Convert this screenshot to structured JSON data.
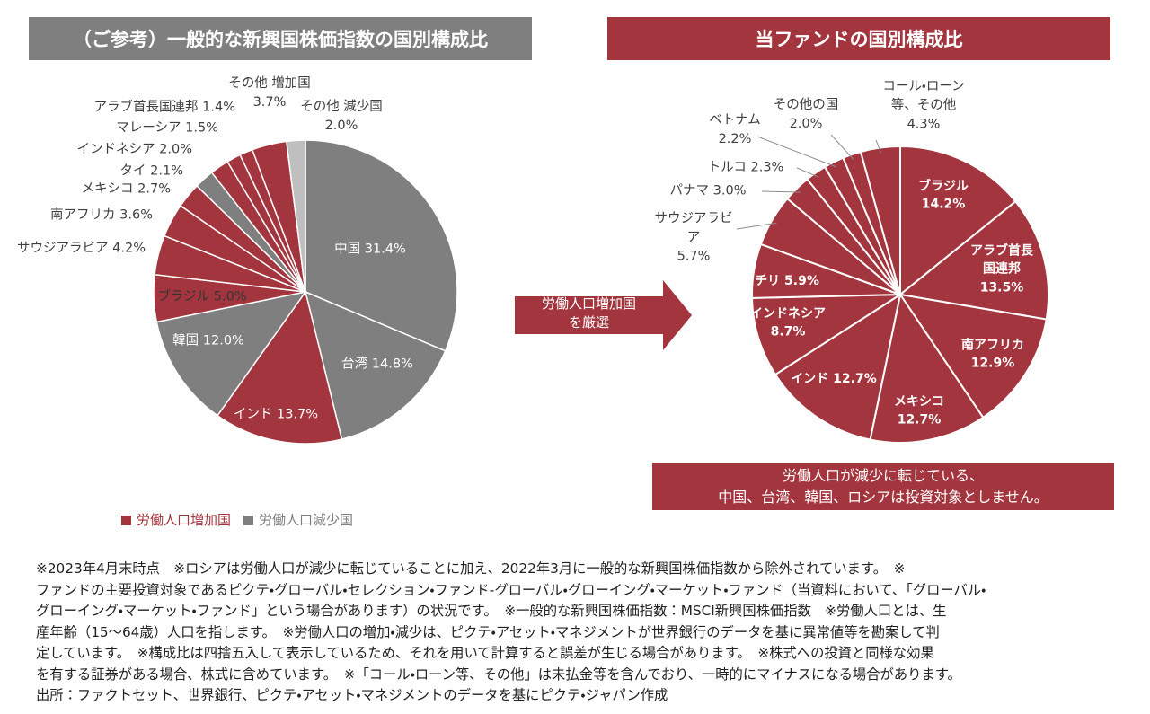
{
  "chart_data": [
    {
      "type": "pie",
      "title": "（ご参考）一般的な新興国株価指数の国別構成比",
      "categories": [
        "中国",
        "台湾",
        "インド",
        "韓国",
        "ブラジル",
        "サウジアラビア",
        "南アフリカ",
        "メキシコ",
        "タイ",
        "インドネシア",
        "マレーシア",
        "アラブ首長国連邦",
        "その他 増加国",
        "その他 減少国"
      ],
      "values": [
        31.4,
        14.8,
        13.7,
        12.0,
        5.0,
        4.2,
        3.6,
        2.7,
        2.1,
        2.0,
        1.5,
        1.4,
        3.7,
        2.0
      ],
      "value_labels": [
        "31.4%",
        "14.8%",
        "13.7%",
        "12.0%",
        "5.0%",
        "4.2%",
        "3.6%",
        "2.7%",
        "2.1%",
        "2.0%",
        "1.5%",
        "1.4%",
        "3.7%",
        "2.0%"
      ],
      "colors": [
        "#7f7f7f",
        "#7f7f7f",
        "#a3353e",
        "#7f7f7f",
        "#a3353e",
        "#a3353e",
        "#a3353e",
        "#a3353e",
        "#7f7f7f",
        "#a3353e",
        "#a3353e",
        "#a3353e",
        "#a3353e",
        "#bfbfbf"
      ],
      "legend": [
        {
          "name": "労働人口増加国",
          "color": "#a3353e"
        },
        {
          "name": "労働人口減少国",
          "color": "#7f7f7f"
        }
      ]
    },
    {
      "type": "pie",
      "title": "当ファンドの国別構成比",
      "categories": [
        "ブラジル",
        "アラブ首長国連邦",
        "南アフリカ",
        "メキシコ",
        "インド",
        "インドネシア",
        "チリ",
        "サウジアラビア",
        "パナマ",
        "トルコ",
        "ベトナム",
        "その他の国",
        "コール・ローン等、その他"
      ],
      "values": [
        14.2,
        13.5,
        12.9,
        12.7,
        12.7,
        8.7,
        5.9,
        5.7,
        3.0,
        2.3,
        2.2,
        2.0,
        4.3
      ],
      "value_labels": [
        "14.2%",
        "13.5%",
        "12.9%",
        "12.7%",
        "12.7%",
        "8.7%",
        "5.9%",
        "5.7%",
        "3.0%",
        "2.3%",
        "2.2%",
        "2.0%",
        "4.3%"
      ],
      "color": "#a3353e"
    }
  ],
  "arrow_text": [
    "労働人口増加国",
    "を厳選"
  ],
  "note_box": [
    "労働人口が減少に転じている、",
    "中国、台湾、韓国、ロシアは投資対象としません。"
  ],
  "footnotes": [
    "※2023年4月末時点　※ロシアは労働人口が減少に転じていることに加え、2022年3月に一般的な新興国株価指数から除外されています。　※",
    "ファンドの主要投資対象であるピクテ・グローバル・セレクション・ファンド-グローバル・グローイング・マーケット・ファンド（当資料において、「グローバル・",
    "グローイング・マーケット・ファンド」という場合があります）の状況です。　※一般的な新興国株価指数：MSCI新興国株価指数　※労働人口とは、生",
    "産年齢（15～64歳）人口を指します。　※労働人口の増加・減少は、ピクテ・アセット・マネジメントが世界銀行のデータを基に異常値等を勘案して判",
    "定しています。　※構成比は四捨五入して表示しているため、それを用いて計算すると誤差が生じる場合があります。　※株式への投資と同様な効果",
    "を有する証券がある場合、株式に含めています。　※「コール・ローン等、その他」は未払金等を含んでおり、一時的にマイナスになる場合があります。",
    "出所：ファクトセット、世界銀行、ピクテ・アセット・マネジメントのデータを基にピクテ・ジャパン作成"
  ]
}
